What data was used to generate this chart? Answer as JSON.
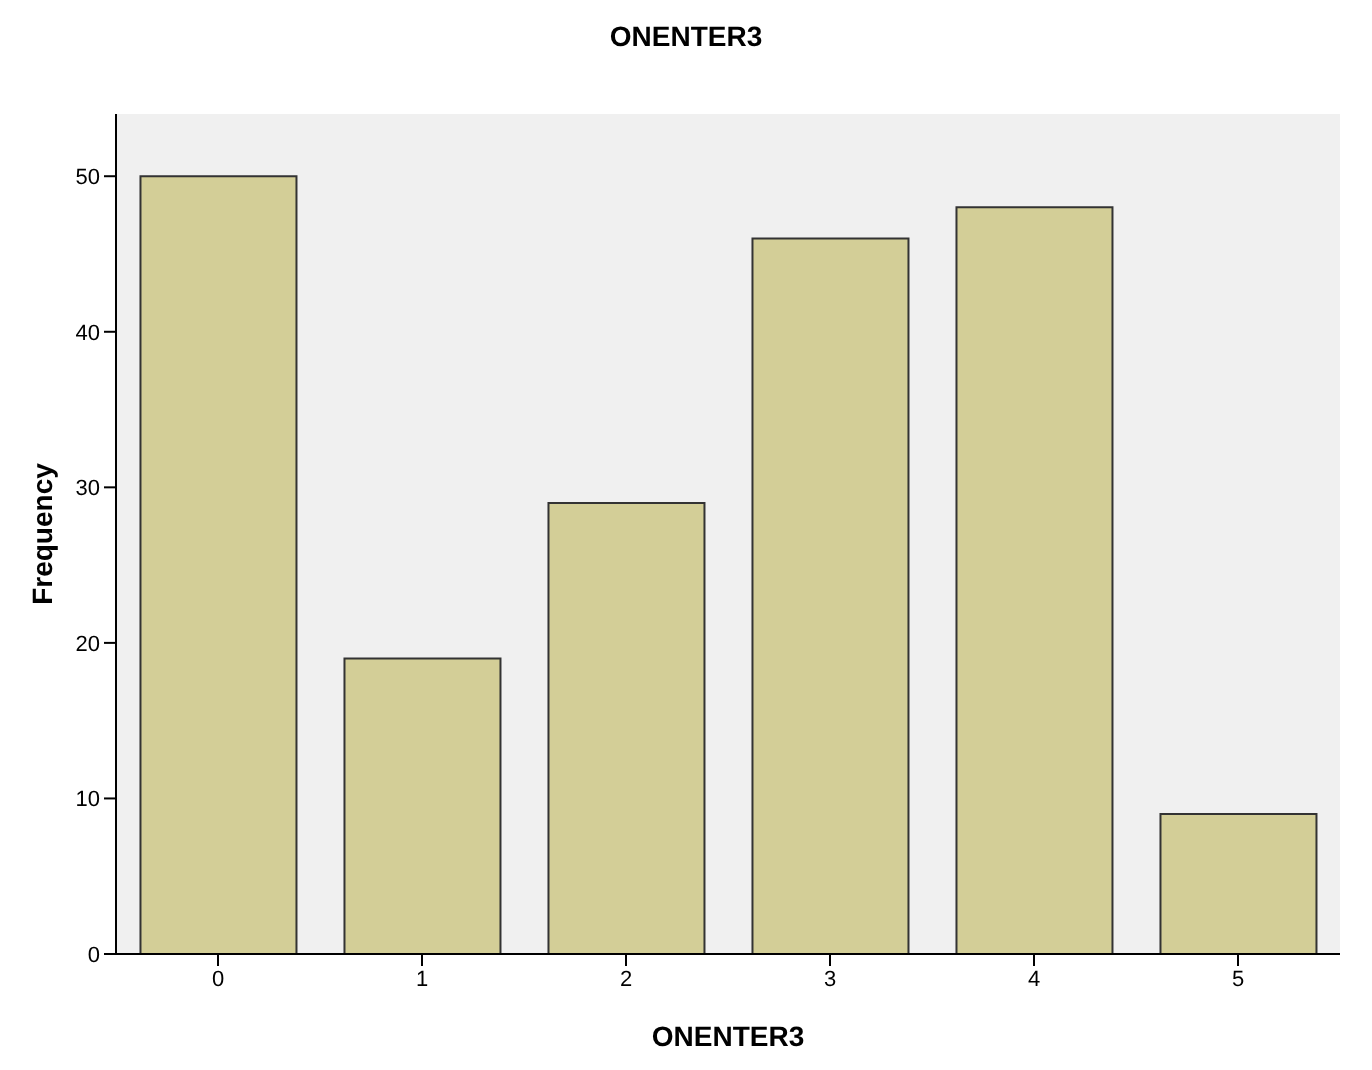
{
  "chart_data": {
    "type": "bar",
    "title": "ONENTER3",
    "xlabel": "ONENTER3",
    "ylabel": "Frequency",
    "categories": [
      "0",
      "1",
      "2",
      "3",
      "4",
      "5"
    ],
    "values": [
      50,
      19,
      29,
      46,
      48,
      9
    ],
    "color": "#d3ce97",
    "ylim": [
      0,
      54
    ],
    "yticks": [
      0,
      10,
      20,
      30,
      40,
      50
    ]
  }
}
